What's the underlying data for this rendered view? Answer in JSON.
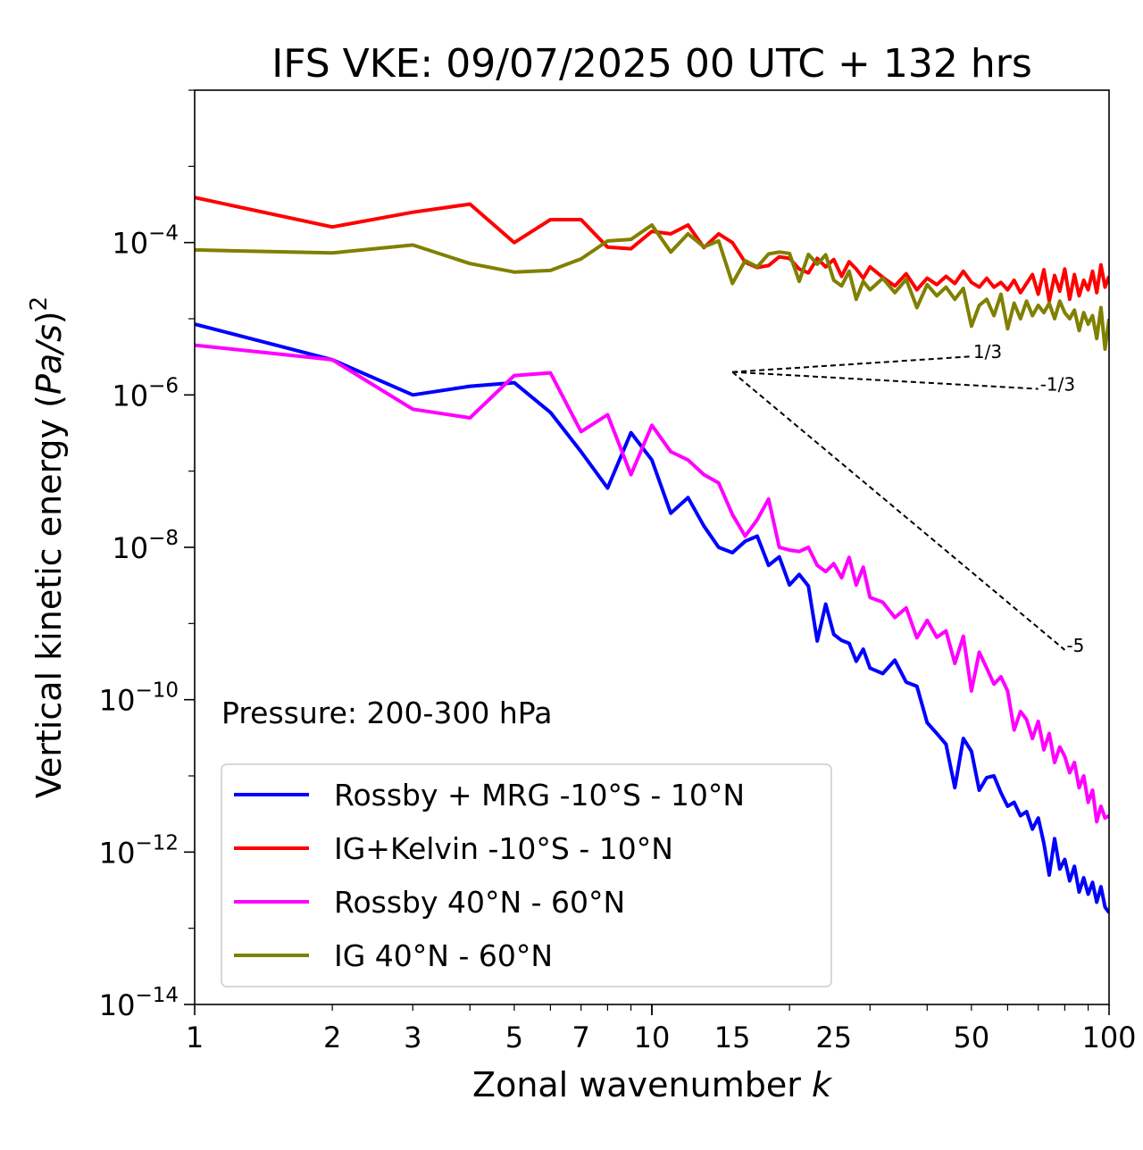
{
  "chart_data": {
    "type": "line",
    "title": "IFS VKE: 09/07/2025 00 UTC + 132 hrs",
    "xlabel_text": "Zonal wavenumber ",
    "xlabel_italic": "k",
    "ylabel_text": "Vertical kinetic energy (",
    "ylabel_italic": "Pa/s",
    "ylabel_close": ")",
    "ylabel_sup": "2",
    "x_scale": "log",
    "y_scale": "log",
    "xlim": [
      1,
      100
    ],
    "ylim": [
      1e-14,
      0.01
    ],
    "x_ticks": [
      {
        "value": 1,
        "label": "1"
      },
      {
        "value": 2,
        "label": "2"
      },
      {
        "value": 3,
        "label": "3"
      },
      {
        "value": 5,
        "label": "5"
      },
      {
        "value": 7,
        "label": "7"
      },
      {
        "value": 10,
        "label": "10"
      },
      {
        "value": 15,
        "label": "15"
      },
      {
        "value": 25,
        "label": "25"
      },
      {
        "value": 50,
        "label": "50"
      },
      {
        "value": 100,
        "label": "100"
      }
    ],
    "y_ticks": [
      {
        "value": 0.0001,
        "base": "10",
        "exp": "−4"
      },
      {
        "value": 1e-06,
        "base": "10",
        "exp": "−6"
      },
      {
        "value": 1e-08,
        "base": "10",
        "exp": "−8"
      },
      {
        "value": 1e-10,
        "base": "10",
        "exp": "−10"
      },
      {
        "value": 1e-12,
        "base": "10",
        "exp": "−12"
      },
      {
        "value": 1e-14,
        "base": "10",
        "exp": "−14"
      }
    ],
    "grid": false,
    "legend_position": "lower-left",
    "annotation": "Pressure: 200-300 hPa",
    "reference_lines": [
      {
        "label": "1/3",
        "x": [
          15,
          50
        ],
        "y": [
          2e-06,
          3.2e-06
        ]
      },
      {
        "label": "-1/3",
        "x": [
          15,
          70
        ],
        "y": [
          2e-06,
          1.2e-06
        ]
      },
      {
        "label": "-5",
        "x": [
          15,
          80
        ],
        "y": [
          2e-06,
          4.5e-10
        ]
      }
    ],
    "series": [
      {
        "name": "Rossby + MRG -10°S - 10°N",
        "color": "#0000ff",
        "x": [
          1,
          2,
          3,
          4,
          5,
          6,
          7,
          8,
          9,
          10,
          11,
          12,
          13,
          14,
          15,
          16,
          17,
          18,
          19,
          20,
          21,
          22,
          23,
          24,
          25,
          26,
          27,
          28,
          29,
          30,
          32,
          34,
          36,
          38,
          40,
          42,
          44,
          46,
          48,
          50,
          52,
          54,
          56,
          58,
          60,
          62,
          64,
          66,
          68,
          70,
          72,
          74,
          76,
          78,
          80,
          82,
          84,
          86,
          88,
          90,
          92,
          94,
          96,
          98,
          100
        ],
        "y": [
          8.5e-06,
          2.9e-06,
          1e-06,
          1.3e-06,
          1.45e-06,
          5.9e-07,
          1.8e-07,
          6e-08,
          3.2e-07,
          1.4e-07,
          2.8e-08,
          4.5e-08,
          1.9e-08,
          1e-08,
          8.5e-09,
          1.2e-08,
          1.4e-08,
          5.8e-09,
          7.5e-09,
          3.2e-09,
          4.4e-09,
          3.1e-09,
          5.9e-10,
          1.8e-09,
          7.2e-10,
          6e-10,
          5.5e-10,
          3.2e-10,
          4.6e-10,
          2.6e-10,
          2.2e-10,
          3.3e-10,
          1.7e-10,
          1.5e-10,
          5e-11,
          3.6e-11,
          2.6e-11,
          7e-12,
          3.1e-11,
          2.1e-11,
          6.5e-12,
          9.5e-12,
          1e-11,
          6e-12,
          4e-12,
          4.5e-12,
          3e-12,
          3.4e-12,
          2e-12,
          2.8e-12,
          1.3e-12,
          5e-13,
          1.5e-12,
          6e-13,
          8e-13,
          4.2e-13,
          6.5e-13,
          3e-13,
          4.6e-13,
          2.8e-13,
          4e-13,
          2.2e-13,
          3.5e-13,
          1.9e-13,
          1.6e-13
        ]
      },
      {
        "name": "IG+Kelvin -10°S - 10°N",
        "color": "#ff0000",
        "x": [
          1,
          2,
          3,
          4,
          5,
          6,
          7,
          8,
          9,
          10,
          11,
          12,
          13,
          14,
          15,
          16,
          17,
          18,
          19,
          20,
          21,
          22,
          23,
          24,
          25,
          26,
          27,
          28,
          29,
          30,
          32,
          34,
          36,
          38,
          40,
          42,
          44,
          46,
          48,
          50,
          52,
          54,
          56,
          58,
          60,
          62,
          64,
          66,
          68,
          70,
          72,
          74,
          76,
          78,
          80,
          82,
          84,
          86,
          88,
          90,
          92,
          94,
          96,
          98,
          100
        ],
        "y": [
          0.00039,
          0.00016,
          0.00025,
          0.00032,
          0.0001,
          0.0002,
          0.0002,
          8.7e-05,
          8.3e-05,
          0.00014,
          0.00013,
          0.00017,
          8.6e-05,
          0.00013,
          0.0001,
          5.5e-05,
          4.7e-05,
          5e-05,
          6.5e-05,
          6.2e-05,
          4.5e-05,
          4e-05,
          6.2e-05,
          4.8e-05,
          6e-05,
          3.6e-05,
          5.6e-05,
          4.5e-05,
          3.4e-05,
          4.8e-05,
          3.5e-05,
          2.7e-05,
          3.9e-05,
          2.4e-05,
          3.4e-05,
          2.8e-05,
          3.6e-05,
          2.9e-05,
          4.2e-05,
          3e-05,
          2.6e-05,
          3.4e-05,
          2.6e-05,
          3e-05,
          2.4e-05,
          3.2e-05,
          2.2e-05,
          2.9e-05,
          3.8e-05,
          2.1e-05,
          4.4e-05,
          1.7e-05,
          3.7e-05,
          2.3e-05,
          4.5e-05,
          1.8e-05,
          3.8e-05,
          2e-05,
          3.2e-05,
          2.4e-05,
          4.2e-05,
          2.2e-05,
          5.1e-05,
          2.6e-05,
          3.6e-05
        ]
      },
      {
        "name": "Rossby 40°N - 60°N",
        "color": "#ff00ff",
        "x": [
          1,
          2,
          3,
          4,
          5,
          6,
          7,
          8,
          9,
          10,
          11,
          12,
          13,
          14,
          15,
          16,
          17,
          18,
          19,
          20,
          21,
          22,
          23,
          24,
          25,
          26,
          27,
          28,
          29,
          30,
          32,
          34,
          36,
          38,
          40,
          42,
          44,
          46,
          48,
          50,
          52,
          54,
          56,
          58,
          60,
          62,
          64,
          66,
          68,
          70,
          72,
          74,
          76,
          78,
          80,
          82,
          84,
          86,
          88,
          90,
          92,
          94,
          96,
          98,
          100
        ],
        "y": [
          4.5e-06,
          2.9e-06,
          6.5e-07,
          5e-07,
          1.8e-06,
          1.95e-06,
          3.3e-07,
          5.5e-07,
          9e-08,
          4e-07,
          1.8e-07,
          1.4e-07,
          9e-08,
          7e-08,
          2.7e-08,
          1.4e-08,
          2.3e-08,
          4.3e-08,
          1e-08,
          9.2e-09,
          8.8e-09,
          1e-08,
          5.8e-09,
          4.8e-09,
          6.1e-09,
          4e-09,
          7.4e-09,
          3.2e-09,
          5.5e-09,
          2.2e-09,
          1.9e-09,
          1.2e-09,
          1.6e-09,
          6.5e-10,
          1.1e-09,
          6.6e-10,
          8e-10,
          3e-10,
          6.8e-10,
          1.3e-10,
          4.2e-10,
          2.6e-10,
          1.6e-10,
          2e-10,
          1.3e-10,
          4e-11,
          7e-11,
          5.5e-11,
          3.1e-11,
          5.2e-11,
          2.2e-11,
          3.6e-11,
          1.5e-11,
          2.4e-11,
          1.8e-11,
          1.1e-11,
          1.5e-11,
          7e-12,
          1e-11,
          4.5e-12,
          6.5e-12,
          2.5e-12,
          4e-12,
          2.8e-12,
          3e-12
        ]
      },
      {
        "name": "IG 40°N - 60°N",
        "color": "#808000",
        "x": [
          1,
          2,
          3,
          4,
          5,
          6,
          7,
          8,
          9,
          10,
          11,
          12,
          13,
          14,
          15,
          16,
          17,
          18,
          19,
          20,
          21,
          22,
          23,
          24,
          25,
          26,
          27,
          28,
          29,
          30,
          32,
          34,
          36,
          38,
          40,
          42,
          44,
          46,
          48,
          50,
          52,
          54,
          56,
          58,
          60,
          62,
          64,
          66,
          68,
          70,
          72,
          74,
          76,
          78,
          80,
          82,
          84,
          86,
          88,
          90,
          92,
          94,
          96,
          98,
          100
        ],
        "y": [
          8e-05,
          7.3e-05,
          9.3e-05,
          5.3e-05,
          4.1e-05,
          4.3e-05,
          6.1e-05,
          0.000105,
          0.00011,
          0.00017,
          7.5e-05,
          0.00013,
          8.8e-05,
          0.000105,
          2.9e-05,
          5.8e-05,
          4.8e-05,
          7.1e-05,
          7.5e-05,
          7.2e-05,
          3.1e-05,
          7e-05,
          5.2e-05,
          6.9e-05,
          3.2e-05,
          2.7e-05,
          4.2e-05,
          1.8e-05,
          3.1e-05,
          2.4e-05,
          3.4e-05,
          2.2e-05,
          3.3e-05,
          1.4e-05,
          2.8e-05,
          2e-05,
          2.6e-05,
          1.8e-05,
          2.5e-05,
          8e-06,
          1.5e-05,
          1.8e-05,
          1.1e-05,
          2.1e-05,
          7.4e-06,
          1.6e-05,
          1e-05,
          1.7e-05,
          1.1e-05,
          1.5e-05,
          1.2e-05,
          1.6e-05,
          1e-05,
          1.7e-05,
          1.2e-05,
          1e-05,
          1.3e-05,
          7e-06,
          1.2e-05,
          8.5e-06,
          1.1e-05,
          5.5e-06,
          1.4e-05,
          4e-06,
          1e-05
        ]
      }
    ]
  }
}
